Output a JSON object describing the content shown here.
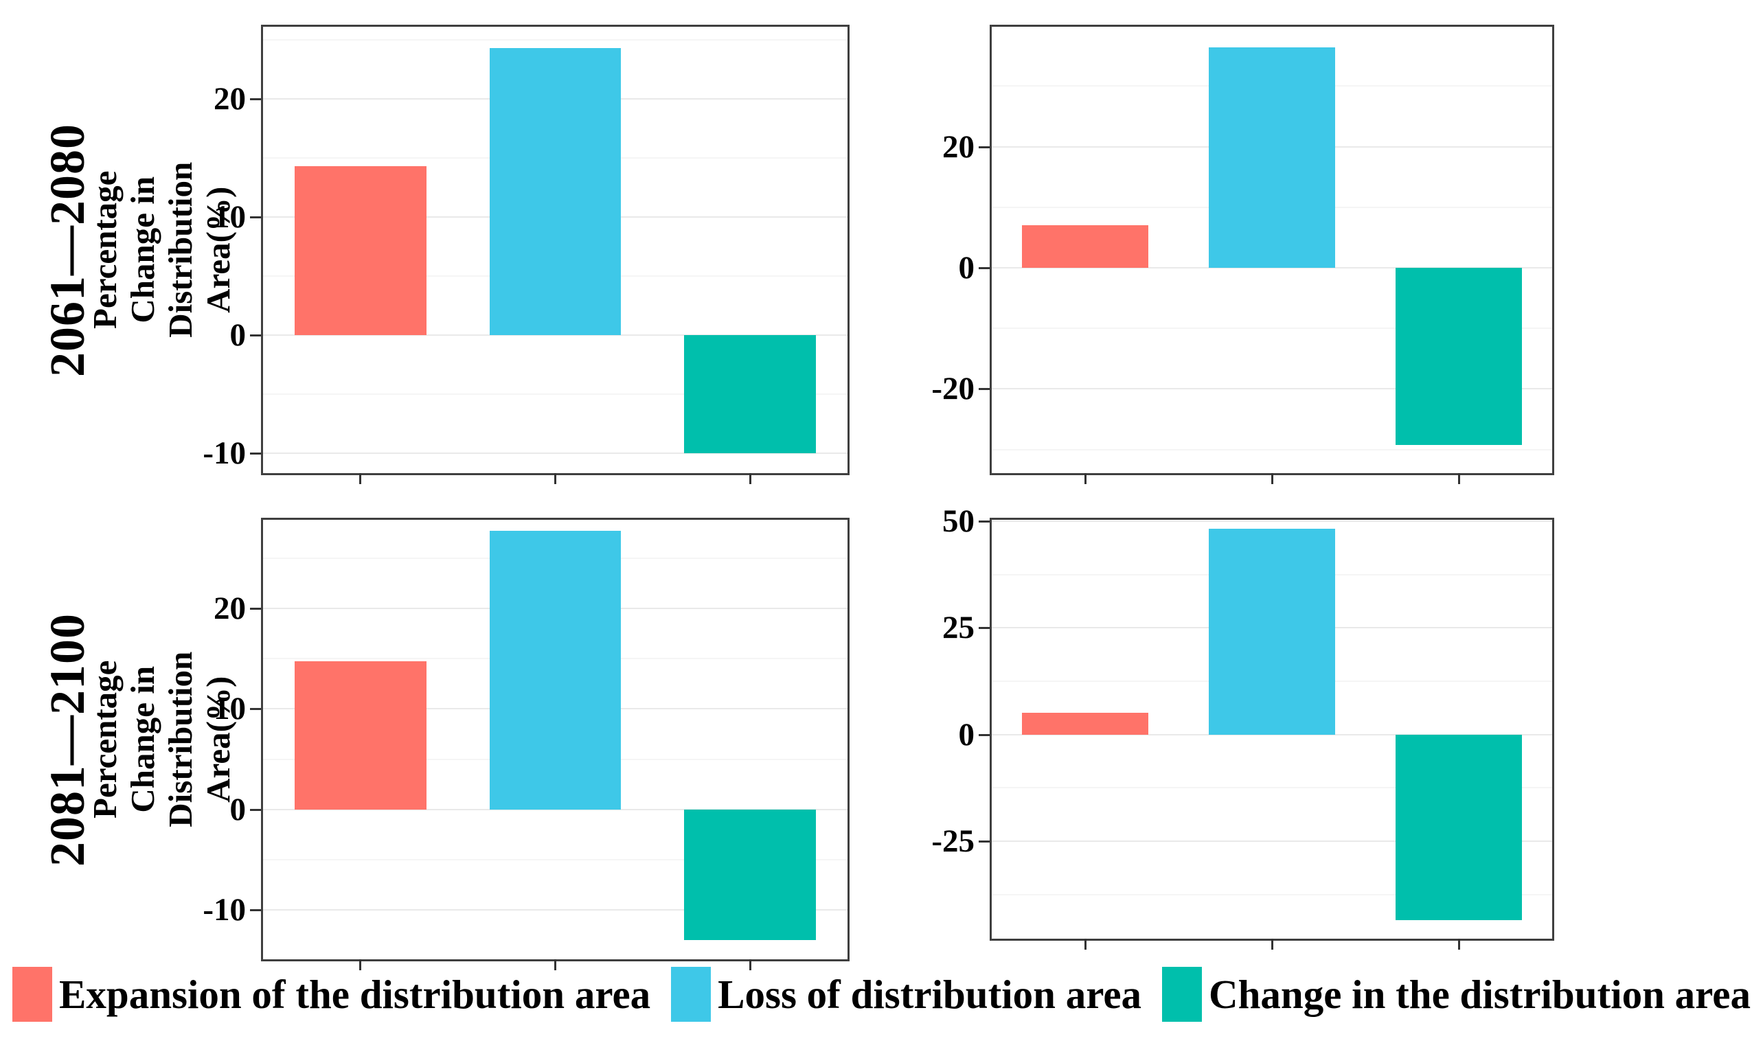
{
  "legend": {
    "items": [
      {
        "label": "Expansion of the distribution area",
        "color": "#FF7369"
      },
      {
        "label": "Loss of distribution area",
        "color": "#3EC8E8"
      },
      {
        "label": "Change in the distribution area",
        "color": "#00BFAC"
      }
    ]
  },
  "chart_data": [
    {
      "type": "bar",
      "panel": "top-left",
      "row_label": "2061—2080",
      "ylabel": "Percentage Change in\nDistribution Area(%)",
      "categories": [
        "Expansion of the distribution area",
        "Loss of distribution area",
        "Change in the distribution area"
      ],
      "values": [
        14.3,
        24.3,
        -10
      ],
      "yticks": [
        20,
        10,
        0,
        -10
      ],
      "yticks_minor": [
        25,
        15,
        5,
        -5
      ],
      "ylim": [
        -11.7,
        26.1
      ],
      "xlabel": "",
      "grid": "major+minor",
      "legend_position": "bottom-shared"
    },
    {
      "type": "bar",
      "panel": "top-right",
      "row_label": "2061—2080",
      "ylabel": "",
      "categories": [
        "Expansion of the distribution area",
        "Loss of distribution area",
        "Change in the distribution area"
      ],
      "values": [
        7,
        36.4,
        -29.3
      ],
      "yticks": [
        20,
        0,
        -20
      ],
      "yticks_minor": [
        30,
        10,
        -10,
        -30
      ],
      "ylim": [
        -33.9,
        39.8
      ],
      "xlabel": "",
      "grid": "major+minor",
      "legend_position": "bottom-shared"
    },
    {
      "type": "bar",
      "panel": "bottom-left",
      "row_label": "2081—2100",
      "ylabel": "Percentage Change in\nDistribution Area(%)",
      "categories": [
        "Expansion of the distribution area",
        "Loss of distribution area",
        "Change in the distribution area"
      ],
      "values": [
        14.7,
        27.7,
        -13
      ],
      "yticks": [
        20,
        10,
        0,
        -10
      ],
      "yticks_minor": [
        25,
        15,
        5,
        -5
      ],
      "ylim": [
        -14.9,
        28.8
      ],
      "xlabel": "",
      "grid": "major+minor",
      "legend_position": "bottom-shared"
    },
    {
      "type": "bar",
      "panel": "bottom-right",
      "row_label": "2081—2100",
      "ylabel": "",
      "categories": [
        "Expansion of the distribution area",
        "Loss of distribution area",
        "Change in the distribution area"
      ],
      "values": [
        5.1,
        48.2,
        -43.5
      ],
      "yticks": [
        50,
        25,
        0,
        -25
      ],
      "yticks_minor": [
        37.5,
        12.5,
        -12.5,
        -37.5
      ],
      "ylim": [
        -47.8,
        50.3
      ],
      "xlabel": "",
      "grid": "major+minor",
      "legend_position": "bottom-shared"
    }
  ]
}
